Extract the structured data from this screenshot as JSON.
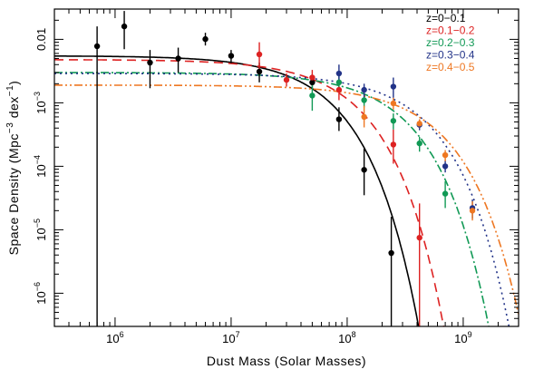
{
  "chart_data": {
    "type": "scatter",
    "xlabel": "Dust Mass (Solar Masses)",
    "ylabel": "Space Density (Mpc",
    "ylabel_sup1": "−3",
    "ylabel_mid": " dex",
    "ylabel_sup2": "−1",
    "ylabel_end": ")",
    "xscale": "log",
    "yscale": "log",
    "xlim": [
      300000,
      3000000000
    ],
    "ylim": [
      3e-07,
      0.03
    ],
    "legend_position": "top-right",
    "x_ticks": [
      {
        "value": 1000000,
        "base": "10",
        "exp": "6"
      },
      {
        "value": 10000000,
        "base": "10",
        "exp": "7"
      },
      {
        "value": 100000000,
        "base": "10",
        "exp": "8"
      },
      {
        "value": 1000000000,
        "base": "10",
        "exp": "9"
      }
    ],
    "y_ticks": [
      {
        "value": 0.01,
        "label": "0.01",
        "exp": ""
      },
      {
        "value": 0.001,
        "label": "10",
        "exp": "−3"
      },
      {
        "value": 0.0001,
        "label": "10",
        "exp": "−4"
      },
      {
        "value": 1e-05,
        "label": "10",
        "exp": "−5"
      },
      {
        "value": 1e-06,
        "label": "10",
        "exp": "−6"
      }
    ],
    "series": [
      {
        "name": "z=0−0.1",
        "color": "#000000",
        "fit": {
          "dash": "solid",
          "phi_star": 0.0055,
          "m_star": 42000000,
          "alpha": 0
        },
        "points": [
          {
            "x": 700000,
            "y": 0.0078,
            "ylo": 3e-07,
            "yhi": 0.016
          },
          {
            "x": 1200000,
            "y": 0.016,
            "ylo": 0.007,
            "yhi": 0.028
          },
          {
            "x": 2000000,
            "y": 0.0043,
            "ylo": 0.0017,
            "yhi": 0.0068
          },
          {
            "x": 3500000,
            "y": 0.005,
            "ylo": 0.003,
            "yhi": 0.0074
          },
          {
            "x": 6000000,
            "y": 0.0101,
            "ylo": 0.008,
            "yhi": 0.0127
          },
          {
            "x": 10000000,
            "y": 0.0055,
            "ylo": 0.0042,
            "yhi": 0.0068
          },
          {
            "x": 17500000,
            "y": 0.0031,
            "ylo": 0.0021,
            "yhi": 0.0043
          },
          {
            "x": 50000000,
            "y": 0.0021,
            "ylo": 0.0016,
            "yhi": 0.0028
          },
          {
            "x": 85000000,
            "y": 0.00055,
            "ylo": 0.00036,
            "yhi": 0.00085
          },
          {
            "x": 140000000,
            "y": 8.8e-05,
            "ylo": 3.5e-05,
            "yhi": 0.00019
          },
          {
            "x": 240000000,
            "y": 4.3e-06,
            "ylo": 3e-07,
            "yhi": 1.6e-05
          }
        ]
      },
      {
        "name": "z=0.1−0.2",
        "color": "#dd2222",
        "fit": {
          "dash": "10,6",
          "phi_star": 0.0048,
          "m_star": 70000000,
          "alpha": 0
        },
        "points": [
          {
            "x": 17500000,
            "y": 0.0058,
            "ylo": 0.0031,
            "yhi": 0.009
          },
          {
            "x": 30000000,
            "y": 0.0023,
            "ylo": 0.0018,
            "yhi": 0.0029
          },
          {
            "x": 50000000,
            "y": 0.0025,
            "ylo": 0.0018,
            "yhi": 0.0033
          },
          {
            "x": 85000000,
            "y": 0.0016,
            "ylo": 0.0011,
            "yhi": 0.0023
          },
          {
            "x": 250000000,
            "y": 0.00022,
            "ylo": 0.00011,
            "yhi": 0.00038
          },
          {
            "x": 420000000,
            "y": 7.5e-06,
            "ylo": 3e-07,
            "yhi": 2.6e-05
          }
        ]
      },
      {
        "name": "z=0.2−0.3",
        "color": "#119955",
        "fit": {
          "dash": "9,3,2,3",
          "phi_star": 0.003,
          "m_star": 180000000,
          "alpha": 0
        },
        "points": [
          {
            "x": 50000000,
            "y": 0.0013,
            "ylo": 0.00075,
            "yhi": 0.0021
          },
          {
            "x": 85000000,
            "y": 0.0021,
            "ylo": 0.0016,
            "yhi": 0.0028
          },
          {
            "x": 140000000,
            "y": 0.0011,
            "ylo": 0.00085,
            "yhi": 0.0014
          },
          {
            "x": 250000000,
            "y": 0.00052,
            "ylo": 0.00038,
            "yhi": 0.00068
          },
          {
            "x": 420000000,
            "y": 0.00023,
            "ylo": 0.00017,
            "yhi": 0.00029
          },
          {
            "x": 700000000,
            "y": 3.7e-05,
            "ylo": 2.2e-05,
            "yhi": 5.8e-05
          }
        ]
      },
      {
        "name": "z=0.3−0.4",
        "color": "#223388",
        "fit": {
          "dash": "2,4",
          "phi_star": 0.0029,
          "m_star": 270000000,
          "alpha": 0
        },
        "points": [
          {
            "x": 85000000,
            "y": 0.0029,
            "ylo": 0.002,
            "yhi": 0.004
          },
          {
            "x": 140000000,
            "y": 0.0016,
            "ylo": 0.0012,
            "yhi": 0.002
          },
          {
            "x": 250000000,
            "y": 0.0018,
            "ylo": 0.0012,
            "yhi": 0.0025
          },
          {
            "x": 420000000,
            "y": 0.00045,
            "ylo": 0.00037,
            "yhi": 0.00055
          },
          {
            "x": 700000000,
            "y": 0.0001,
            "ylo": 8e-05,
            "yhi": 0.000125
          },
          {
            "x": 1200000000,
            "y": 2.2e-05,
            "ylo": 1.5e-05,
            "yhi": 3e-05
          }
        ]
      },
      {
        "name": "z=0.4−0.5",
        "color": "#ee7722",
        "fit": {
          "dash": "9,3,2,3,2,3",
          "phi_star": 0.0019,
          "m_star": 360000000,
          "alpha": 0
        },
        "points": [
          {
            "x": 140000000,
            "y": 0.0006,
            "ylo": 0.00041,
            "yhi": 0.0009
          },
          {
            "x": 250000000,
            "y": 0.00098,
            "ylo": 0.00078,
            "yhi": 0.0012
          },
          {
            "x": 420000000,
            "y": 0.00047,
            "ylo": 0.0004,
            "yhi": 0.00055
          },
          {
            "x": 700000000,
            "y": 0.00015,
            "ylo": 0.00012,
            "yhi": 0.00018
          },
          {
            "x": 1200000000,
            "y": 2e-05,
            "ylo": 1.4e-05,
            "yhi": 2.8e-05
          }
        ]
      }
    ]
  }
}
